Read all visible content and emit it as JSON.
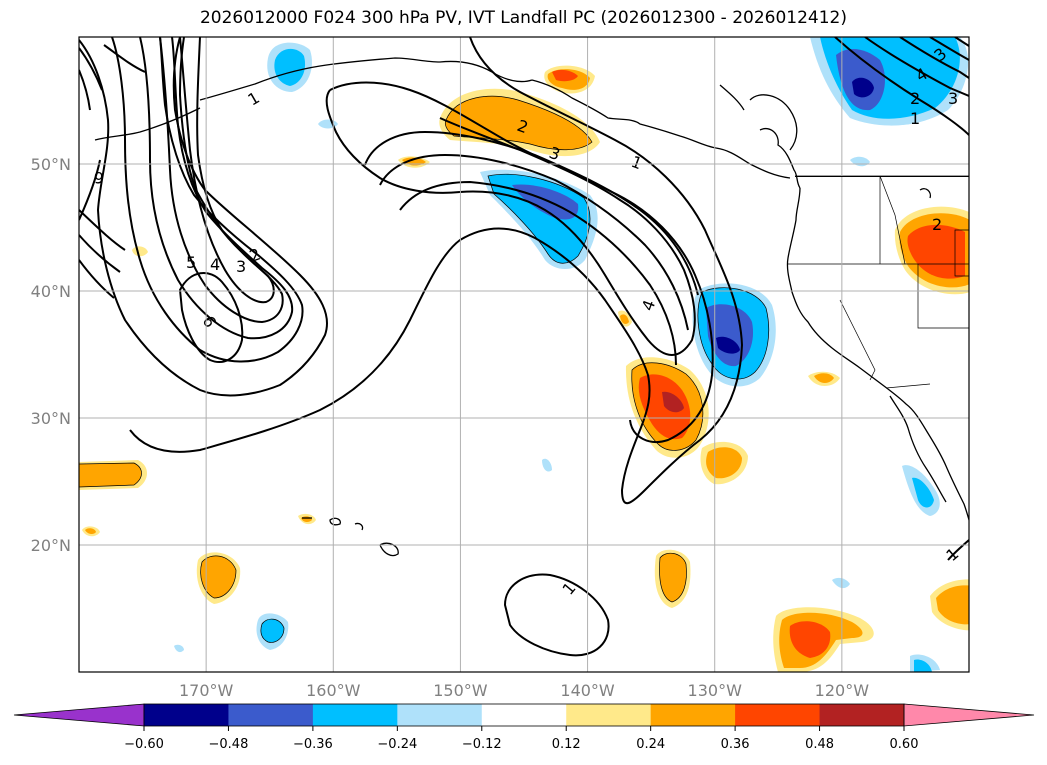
{
  "title": "2026012000 F024 300 hPa PV, IVT Landfall PC (2026012300 - 2026012412)",
  "map": {
    "lon_range": [
      -180,
      -110
    ],
    "lat_range": [
      10,
      60
    ],
    "lon_ticks": [
      -170,
      -160,
      -150,
      -140,
      -130,
      -120
    ],
    "lat_ticks": [
      20,
      30,
      40,
      50
    ],
    "lon_tick_labels": [
      "170°W",
      "160°W",
      "150°W",
      "140°W",
      "130°W",
      "120°W"
    ],
    "lat_tick_labels": [
      "20°N",
      "30°N",
      "40°N",
      "50°N"
    ],
    "grid": true
  },
  "colorbar": {
    "tick_labels": [
      "−0.60",
      "−0.48",
      "−0.36",
      "−0.24",
      "−0.12",
      "0.12",
      "0.24",
      "0.36",
      "0.48",
      "0.60"
    ],
    "colors": [
      "#9932cc",
      "#00008b",
      "#3b5bcc",
      "#00bfff",
      "#afe1fa",
      "#ffffff",
      "#ffe98a",
      "#ffa500",
      "#ff4500",
      "#b22222",
      "#ff88aa"
    ]
  },
  "contour_labels": [
    "1",
    "2",
    "3",
    "2",
    "3",
    "4",
    "5",
    "6",
    "6",
    "1",
    "2",
    "3",
    "4",
    "1",
    "2",
    "3",
    "4",
    "1",
    "1"
  ]
}
